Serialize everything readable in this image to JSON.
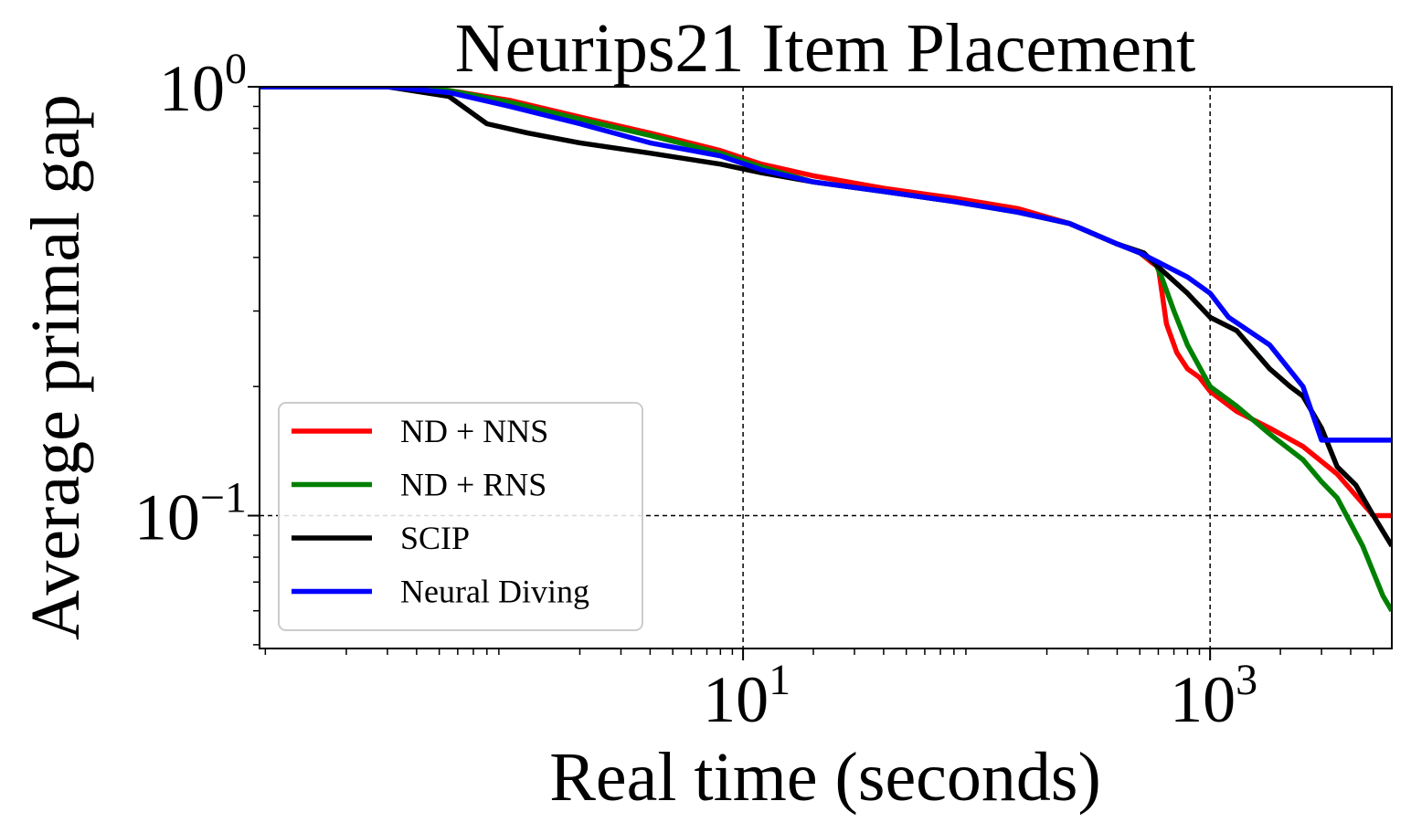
{
  "chart_data": {
    "type": "line",
    "title": "Neurips21 Item Placement",
    "xlabel": "Real time (seconds)",
    "ylabel": "Average primal gap",
    "xscale": "log",
    "yscale": "log",
    "xlim": [
      0.085,
      6000
    ],
    "ylim": [
      0.049,
      1.0
    ],
    "xticks": [
      {
        "value": 10,
        "base": "10",
        "exp": "1"
      },
      {
        "value": 1000,
        "base": "10",
        "exp": "3"
      }
    ],
    "yticks": [
      {
        "value": 1.0,
        "base": "10",
        "exp": "0"
      },
      {
        "value": 0.1,
        "base": "10",
        "exp": "−1"
      }
    ],
    "grid": true,
    "legend_position": "lower-left",
    "series": [
      {
        "name": "ND + NNS",
        "color": "#ff0000",
        "x": [
          0.085,
          0.3,
          0.55,
          1.0,
          2.0,
          4.0,
          8.0,
          12,
          20,
          40,
          80,
          150,
          250,
          400,
          500,
          560,
          600,
          650,
          720,
          800,
          900,
          1000,
          1300,
          1800,
          2500,
          3500,
          5000,
          6000
        ],
        "y": [
          1.0,
          1.0,
          0.98,
          0.93,
          0.85,
          0.78,
          0.71,
          0.66,
          0.62,
          0.58,
          0.55,
          0.52,
          0.48,
          0.43,
          0.41,
          0.39,
          0.38,
          0.28,
          0.24,
          0.22,
          0.21,
          0.195,
          0.175,
          0.16,
          0.145,
          0.125,
          0.1,
          0.1
        ]
      },
      {
        "name": "ND + RNS",
        "color": "#008000",
        "x": [
          0.085,
          0.3,
          0.55,
          1.0,
          2.0,
          4.0,
          8.0,
          12,
          20,
          40,
          80,
          150,
          250,
          400,
          500,
          580,
          620,
          700,
          800,
          1000,
          1300,
          1800,
          2500,
          3000,
          3500,
          4500,
          5500,
          6000
        ],
        "y": [
          1.0,
          1.0,
          0.98,
          0.92,
          0.84,
          0.77,
          0.7,
          0.65,
          0.6,
          0.57,
          0.54,
          0.51,
          0.48,
          0.43,
          0.41,
          0.39,
          0.36,
          0.3,
          0.25,
          0.2,
          0.18,
          0.155,
          0.135,
          0.12,
          0.11,
          0.085,
          0.065,
          0.06
        ]
      },
      {
        "name": "SCIP",
        "color": "#000000",
        "x": [
          0.085,
          0.3,
          0.55,
          0.8,
          1.2,
          2.0,
          4.0,
          8.0,
          12,
          20,
          40,
          80,
          150,
          250,
          400,
          520,
          600,
          800,
          1000,
          1300,
          1800,
          2200,
          2500,
          3000,
          3500,
          4200,
          5000,
          6000
        ],
        "y": [
          1.0,
          1.0,
          0.95,
          0.82,
          0.78,
          0.74,
          0.7,
          0.66,
          0.63,
          0.6,
          0.57,
          0.54,
          0.51,
          0.48,
          0.43,
          0.41,
          0.38,
          0.33,
          0.29,
          0.27,
          0.22,
          0.2,
          0.19,
          0.16,
          0.13,
          0.118,
          0.1,
          0.085
        ]
      },
      {
        "name": "Neural Diving",
        "color": "#0000ff",
        "x": [
          0.085,
          0.3,
          0.55,
          1.0,
          2.0,
          4.0,
          8.0,
          12,
          20,
          40,
          80,
          150,
          250,
          400,
          500,
          600,
          800,
          1000,
          1200,
          1800,
          2500,
          3000,
          6000
        ],
        "y": [
          1.0,
          1.0,
          0.97,
          0.9,
          0.82,
          0.74,
          0.69,
          0.64,
          0.6,
          0.57,
          0.54,
          0.51,
          0.48,
          0.43,
          0.41,
          0.39,
          0.36,
          0.33,
          0.29,
          0.25,
          0.2,
          0.15,
          0.15
        ]
      }
    ]
  }
}
